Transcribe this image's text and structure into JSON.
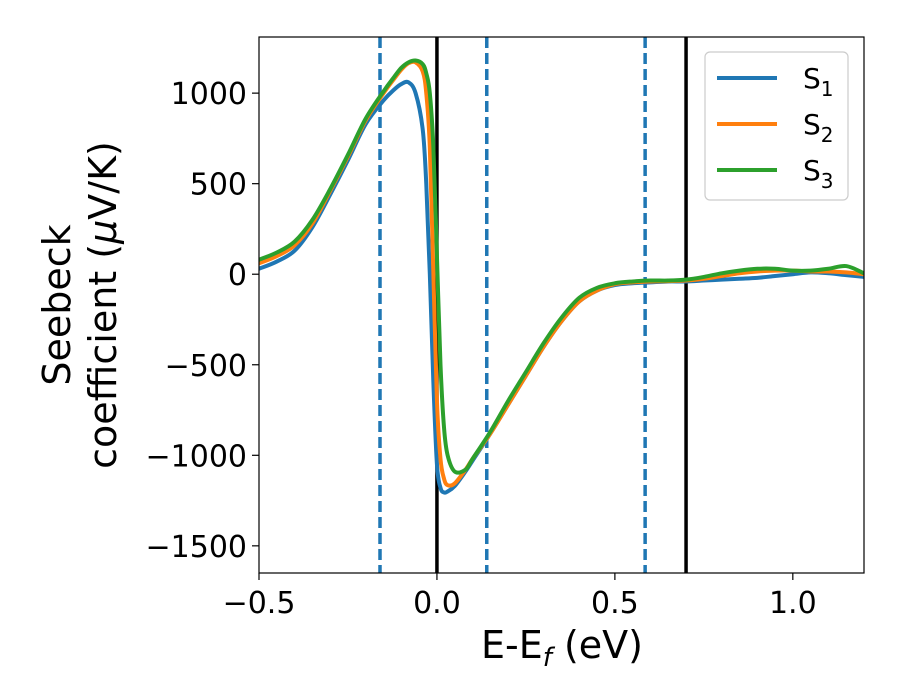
{
  "chart_data": {
    "type": "line",
    "xlabel": "E-E",
    "xlabel_sub": "f",
    "xlabel_unit": " (eV)",
    "ylabel_line1": "Seebeck",
    "ylabel_line2_prefix": "coefficient  (",
    "ylabel_mu": "μ",
    "ylabel_line2_suffix": "V/K)",
    "xlim": [
      -0.5,
      1.2
    ],
    "ylim": [
      -1650,
      1310
    ],
    "xticks": [
      -0.5,
      0.0,
      0.5,
      1.0
    ],
    "xtick_labels": [
      "−0.5",
      "0.0",
      "0.5",
      "1.0"
    ],
    "yticks": [
      -1500,
      -1000,
      -500,
      0,
      500,
      1000
    ],
    "ytick_labels": [
      "−1500",
      "−1000",
      "−500",
      "0",
      "500",
      "1000"
    ],
    "grid": false,
    "legend_position": "top-right",
    "vlines_solid": [
      0.0,
      0.7
    ],
    "vlines_dashed": [
      -0.16,
      0.14,
      0.585
    ],
    "series": [
      {
        "name": "S",
        "name_sub": "1",
        "color": "#1f77b4",
        "x": [
          -0.5,
          -0.45,
          -0.4,
          -0.35,
          -0.3,
          -0.25,
          -0.2,
          -0.15,
          -0.12,
          -0.1,
          -0.08,
          -0.06,
          -0.04,
          -0.03,
          -0.02,
          -0.01,
          0.0,
          0.01,
          0.02,
          0.03,
          0.05,
          0.08,
          0.1,
          0.15,
          0.2,
          0.25,
          0.3,
          0.35,
          0.4,
          0.45,
          0.5,
          0.55,
          0.6,
          0.65,
          0.7,
          0.75,
          0.8,
          0.85,
          0.9,
          0.95,
          1.0,
          1.05,
          1.1,
          1.15,
          1.2
        ],
        "y": [
          30,
          70,
          130,
          260,
          440,
          630,
          830,
          960,
          1020,
          1050,
          1060,
          1000,
          800,
          500,
          0,
          -600,
          -1050,
          -1180,
          -1205,
          -1200,
          -1170,
          -1090,
          -1030,
          -880,
          -720,
          -560,
          -400,
          -260,
          -150,
          -90,
          -60,
          -50,
          -45,
          -40,
          -40,
          -35,
          -30,
          -25,
          -20,
          -10,
          0,
          10,
          5,
          -5,
          -15
        ]
      },
      {
        "name": "S",
        "name_sub": "2",
        "color": "#ff7f0e",
        "x": [
          -0.5,
          -0.45,
          -0.4,
          -0.35,
          -0.3,
          -0.25,
          -0.2,
          -0.15,
          -0.12,
          -0.1,
          -0.08,
          -0.06,
          -0.04,
          -0.03,
          -0.02,
          -0.01,
          0.0,
          0.01,
          0.02,
          0.03,
          0.05,
          0.08,
          0.1,
          0.15,
          0.2,
          0.25,
          0.3,
          0.35,
          0.4,
          0.45,
          0.5,
          0.55,
          0.6,
          0.65,
          0.7,
          0.75,
          0.8,
          0.85,
          0.9,
          0.95,
          1.0,
          1.05,
          1.1,
          1.15,
          1.2
        ],
        "y": [
          60,
          100,
          160,
          280,
          460,
          650,
          850,
          1000,
          1080,
          1130,
          1165,
          1170,
          1120,
          1000,
          700,
          0,
          -700,
          -1020,
          -1130,
          -1165,
          -1155,
          -1080,
          -1020,
          -880,
          -720,
          -560,
          -400,
          -260,
          -150,
          -90,
          -55,
          -45,
          -40,
          -38,
          -35,
          -25,
          -10,
          5,
          15,
          20,
          20,
          15,
          15,
          10,
          0
        ]
      },
      {
        "name": "S",
        "name_sub": "3",
        "color": "#2ca02c",
        "x": [
          -0.5,
          -0.45,
          -0.4,
          -0.35,
          -0.3,
          -0.25,
          -0.2,
          -0.15,
          -0.12,
          -0.1,
          -0.08,
          -0.06,
          -0.04,
          -0.03,
          -0.02,
          -0.01,
          0.0,
          0.01,
          0.02,
          0.03,
          0.05,
          0.08,
          0.1,
          0.15,
          0.2,
          0.25,
          0.3,
          0.35,
          0.4,
          0.45,
          0.5,
          0.55,
          0.6,
          0.65,
          0.7,
          0.75,
          0.8,
          0.85,
          0.9,
          0.95,
          1.0,
          1.05,
          1.1,
          1.15,
          1.2
        ],
        "y": [
          80,
          120,
          180,
          300,
          470,
          660,
          860,
          1010,
          1090,
          1140,
          1170,
          1180,
          1160,
          1110,
          1000,
          700,
          100,
          -500,
          -850,
          -1000,
          -1090,
          -1080,
          -1020,
          -870,
          -700,
          -540,
          -380,
          -240,
          -130,
          -75,
          -50,
          -40,
          -35,
          -35,
          -30,
          -15,
          5,
          20,
          30,
          30,
          20,
          20,
          30,
          45,
          5
        ]
      }
    ]
  }
}
